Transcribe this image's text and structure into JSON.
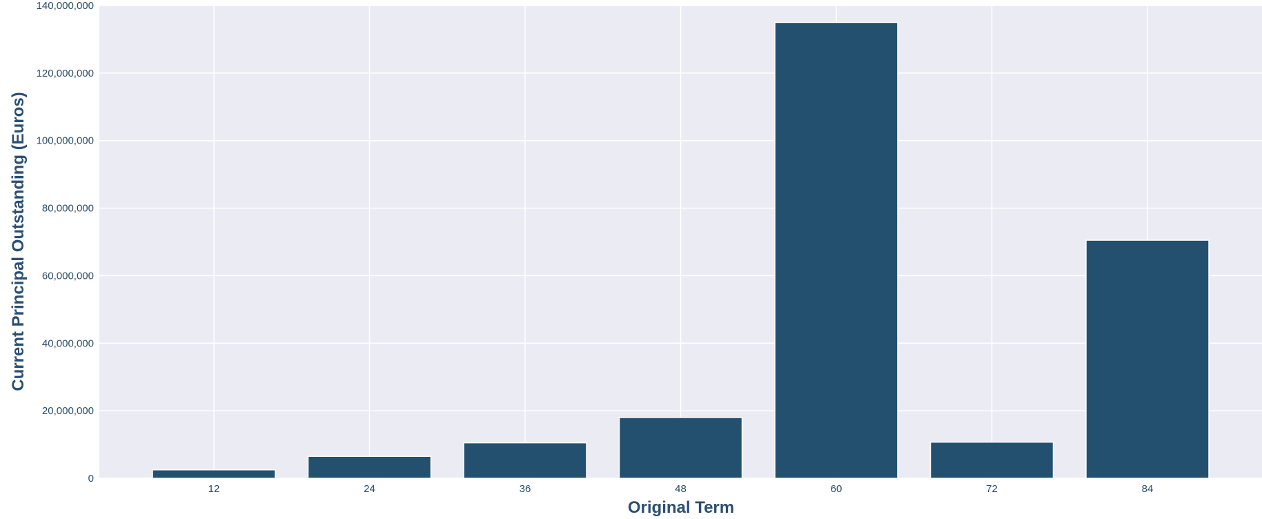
{
  "chart_data": {
    "type": "bar",
    "title": "",
    "xlabel": "Original Term",
    "ylabel": "Current Principal Outstanding (Euros)",
    "categories": [
      "12",
      "24",
      "36",
      "48",
      "60",
      "72",
      "84"
    ],
    "values": [
      2500000,
      6500000,
      10500000,
      18000000,
      135000000,
      10700000,
      70500000
    ],
    "ylim": [
      0,
      140000000
    ],
    "y_ticks": [
      0,
      20000000,
      40000000,
      60000000,
      80000000,
      100000000,
      120000000,
      140000000
    ],
    "y_tick_labels": [
      "0",
      "20,000,000",
      "40,000,000",
      "60,000,000",
      "80,000,000",
      "100,000,000",
      "120,000,000",
      "140,000,000"
    ],
    "grid": true,
    "legend": false,
    "colors": {
      "bar": "#23506f",
      "plot_background": "#ebebf4",
      "grid": "#ffffff",
      "tick_text": "#2b4a66",
      "axis_title": "#2b4f73"
    }
  }
}
